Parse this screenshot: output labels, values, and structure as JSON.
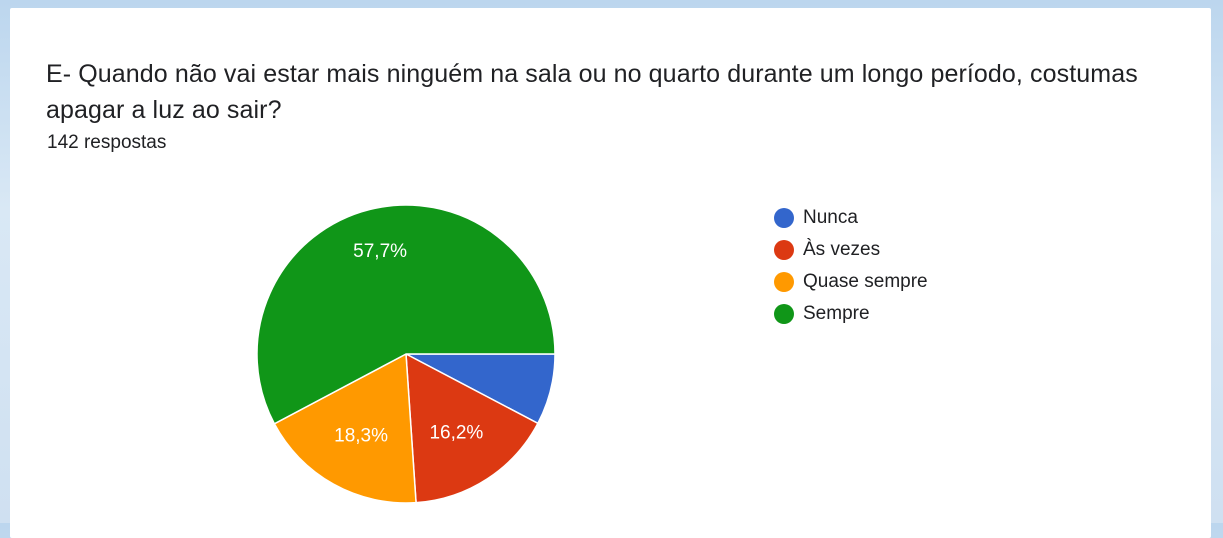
{
  "question": {
    "title": "E- Quando não vai estar mais ninguém na sala ou no quarto durante um longo período, costumas apagar a luz ao sair?",
    "responses_label": "142 respostas"
  },
  "chart_data": {
    "type": "pie",
    "title": "",
    "categories": [
      "Nunca",
      "Às vezes",
      "Quase sempre",
      "Sempre"
    ],
    "values": [
      7.7,
      16.2,
      18.3,
      57.7
    ],
    "labels": [
      "",
      "16,2%",
      "18,3%",
      "57,7%"
    ],
    "colors": [
      "#3366cc",
      "#dc3912",
      "#ff9900",
      "#109618"
    ],
    "legend_position": "right"
  }
}
